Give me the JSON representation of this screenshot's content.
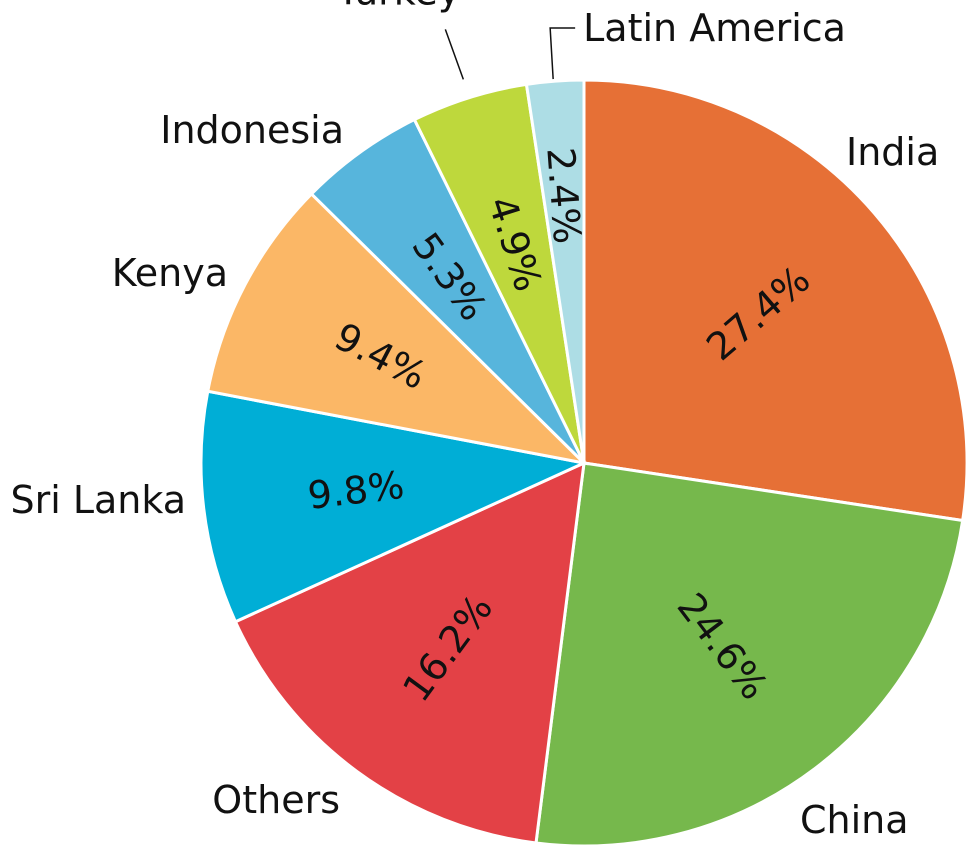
{
  "chart_data": {
    "type": "pie",
    "title": "",
    "slices": [
      {
        "label": "India",
        "value": 27.4,
        "display": "27.4%",
        "color": "#E67036"
      },
      {
        "label": "China",
        "value": 24.6,
        "display": "24.6%",
        "color": "#76B84C"
      },
      {
        "label": "Others",
        "value": 16.2,
        "display": "16.2%",
        "color": "#E34146"
      },
      {
        "label": "Sri Lanka",
        "value": 9.8,
        "display": "9.8%",
        "color": "#00AED6"
      },
      {
        "label": "Kenya",
        "value": 9.4,
        "display": "9.4%",
        "color": "#FBB766"
      },
      {
        "label": "Indonesia",
        "value": 5.3,
        "display": "5.3%",
        "color": "#57B5DC"
      },
      {
        "label": "Turkey",
        "value": 4.9,
        "display": "4.9%",
        "color": "#BED83C"
      },
      {
        "label": "Latin America",
        "value": 2.4,
        "display": "2.4%",
        "color": "#ADDDE5"
      }
    ],
    "start_angle": "12 o'clock",
    "direction": "clockwise",
    "legend": "none"
  }
}
